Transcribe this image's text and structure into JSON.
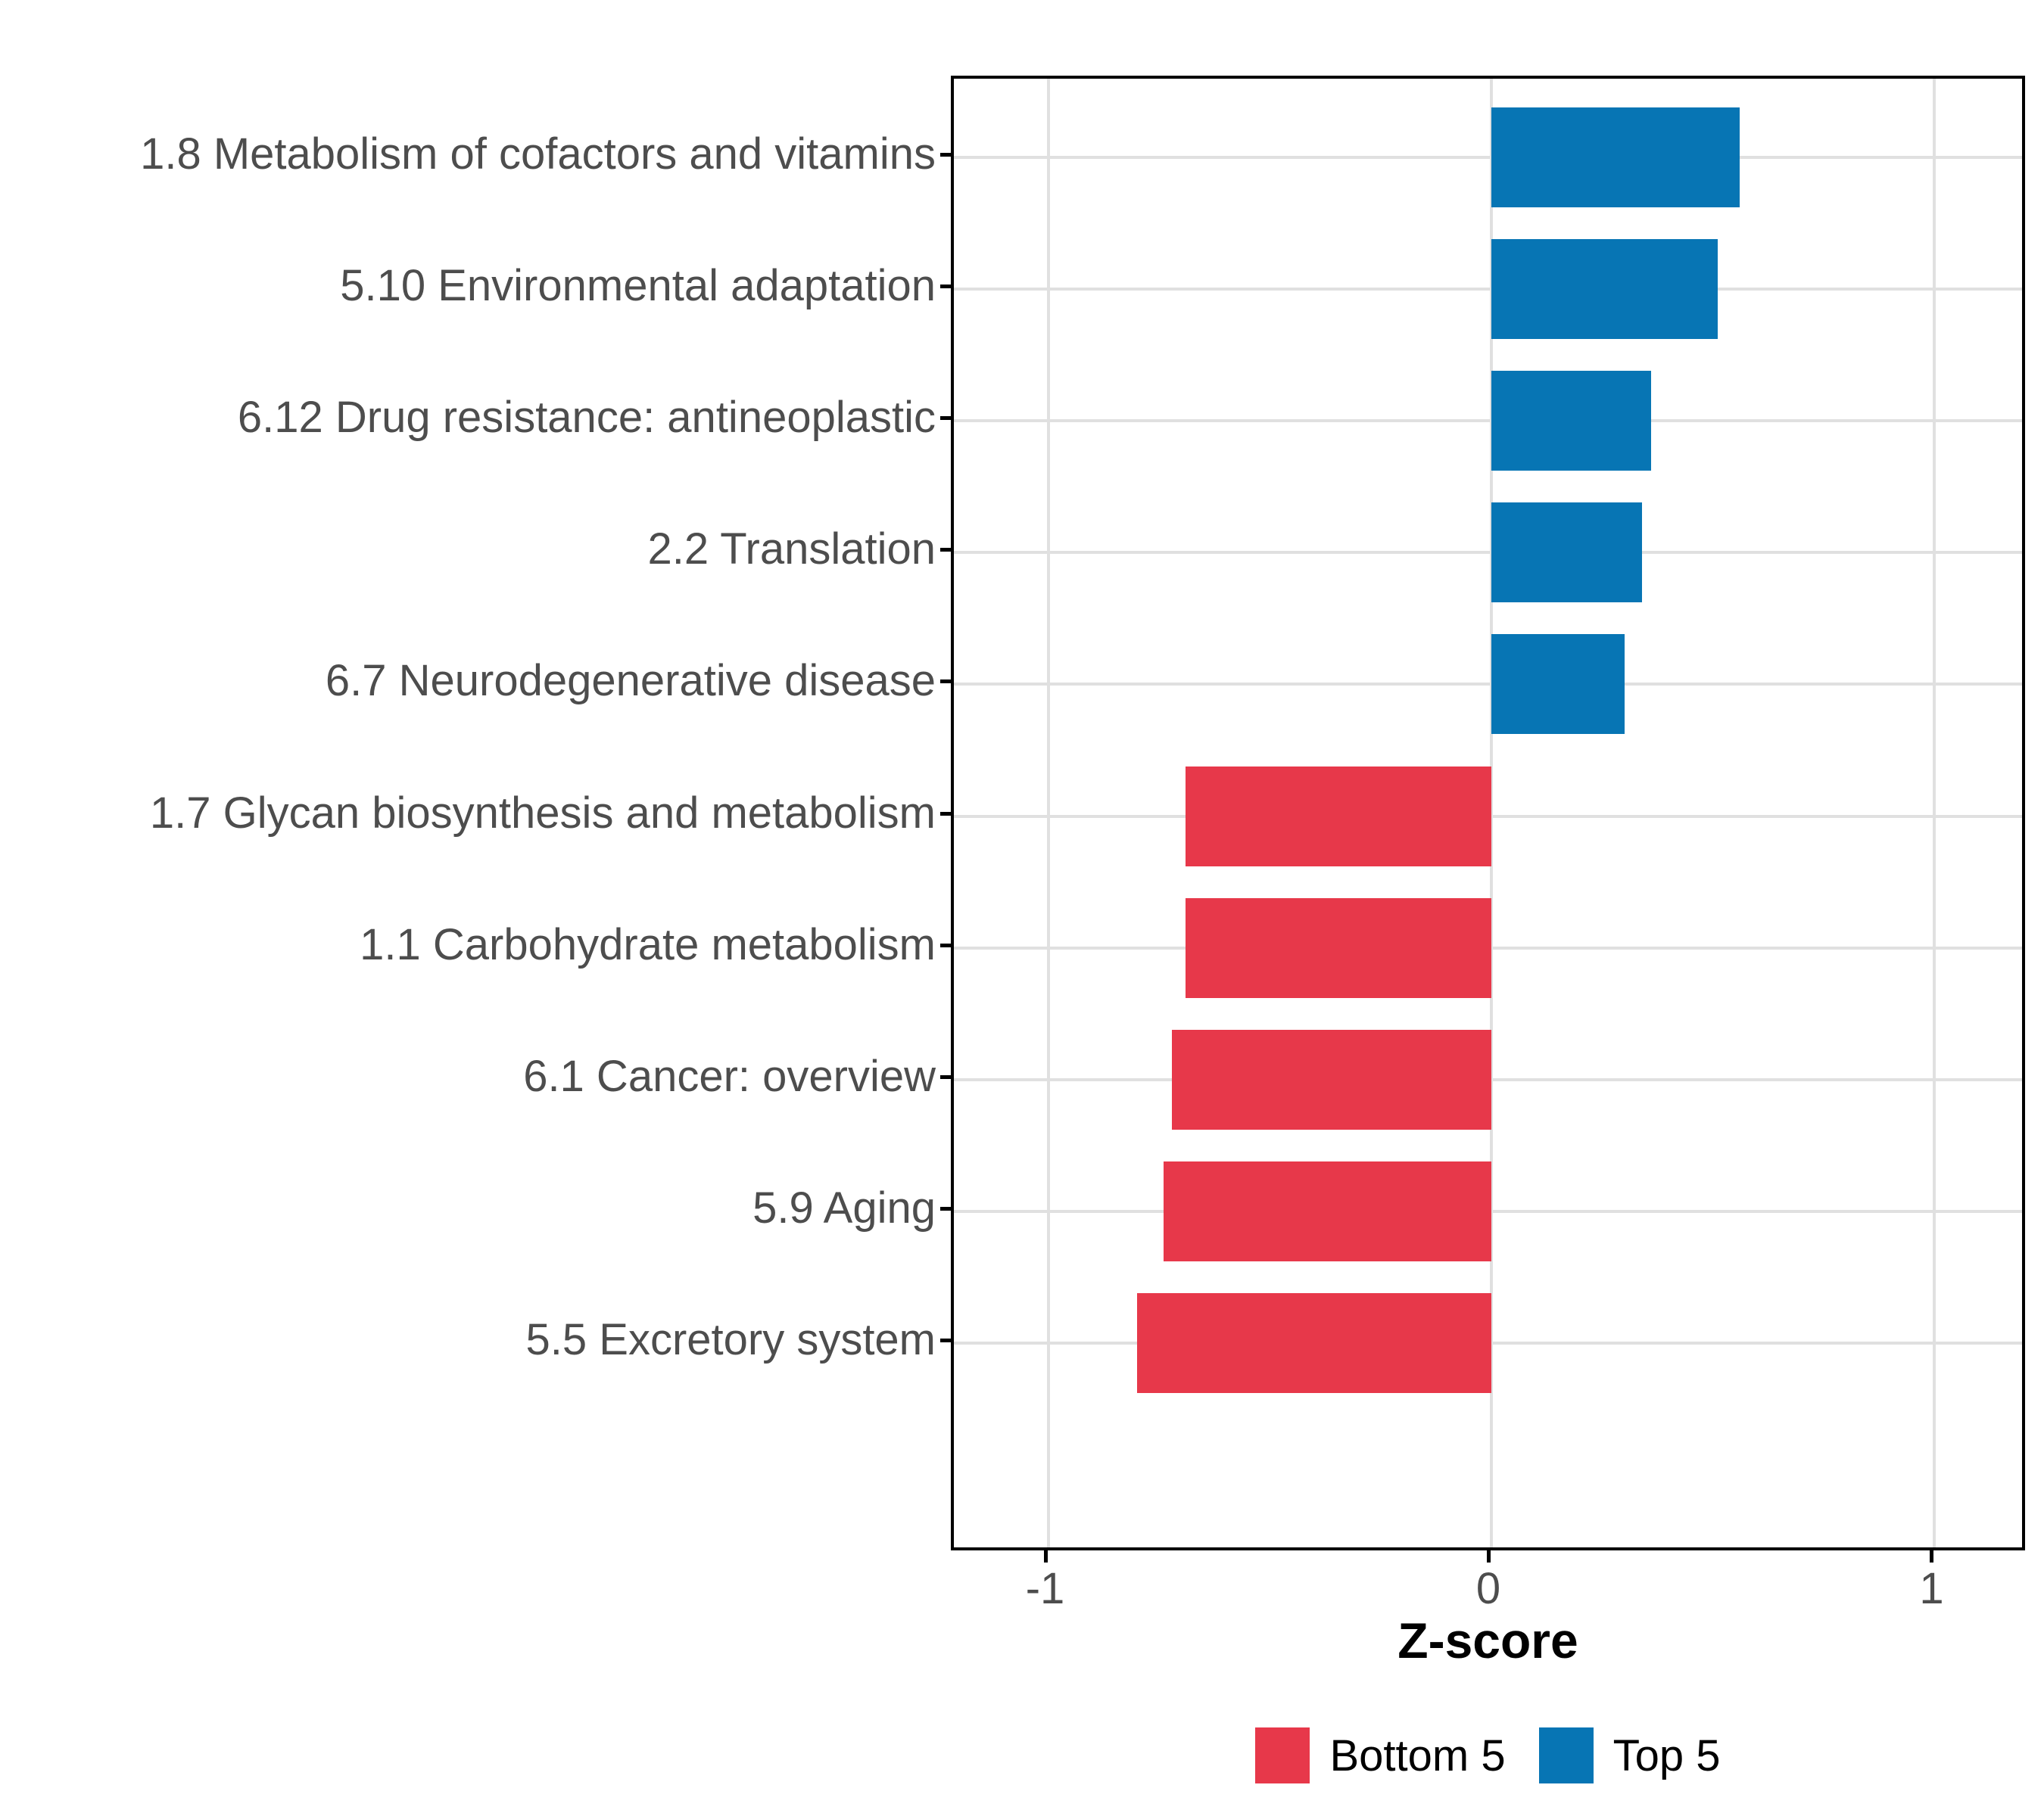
{
  "chart_data": {
    "type": "bar",
    "orientation": "horizontal",
    "title": "",
    "xlabel": "Z-score",
    "ylabel": "",
    "x_axis": {
      "label": "Z-score",
      "tick_labels": [
        "-1",
        "0",
        "1"
      ],
      "tick_values": [
        -1,
        0,
        1
      ],
      "limits": [
        -1.2127,
        1.211
      ]
    },
    "grid": {
      "major": true,
      "minor": false,
      "color": "#E0E0E0"
    },
    "categories": [
      "1.8 Metabolism of cofactors and vitamins",
      "5.10 Environmental adaptation",
      "6.12 Drug resistance: antineoplastic",
      "2.2 Translation",
      "6.7 Neurodegenerative disease",
      "1.7 Glycan biosynthesis and metabolism",
      "1.1 Carbohydrate metabolism",
      "6.1 Cancer: overview",
      "5.9 Aging",
      "5.5 Excretory system"
    ],
    "values": [
      0.56,
      0.51,
      0.36,
      0.34,
      0.3,
      -0.69,
      -0.69,
      -0.72,
      -0.74,
      -0.8
    ],
    "rows": [
      {
        "label": "1.8 Metabolism of cofactors and vitamins",
        "value": 0.56,
        "group": "Top 5"
      },
      {
        "label": "5.10 Environmental adaptation",
        "value": 0.51,
        "group": "Top 5"
      },
      {
        "label": "6.12 Drug resistance: antineoplastic",
        "value": 0.36,
        "group": "Top 5"
      },
      {
        "label": "2.2 Translation",
        "value": 0.34,
        "group": "Top 5"
      },
      {
        "label": "6.7 Neurodegenerative disease",
        "value": 0.3,
        "group": "Top 5"
      },
      {
        "label": "1.7 Glycan biosynthesis and metabolism",
        "value": -0.69,
        "group": "Bottom 5"
      },
      {
        "label": "1.1 Carbohydrate metabolism",
        "value": -0.69,
        "group": "Bottom 5"
      },
      {
        "label": "6.1 Cancer: overview",
        "value": -0.72,
        "group": "Bottom 5"
      },
      {
        "label": "5.9 Aging",
        "value": -0.74,
        "group": "Bottom 5"
      },
      {
        "label": "5.5 Excretory system",
        "value": -0.8,
        "group": "Bottom 5"
      }
    ],
    "group_colors": {
      "Top 5": "#0775B4",
      "Bottom 5": "#E7384A"
    },
    "legend": {
      "position": "bottom",
      "items": [
        {
          "label": "Bottom 5",
          "color": "#E7384A"
        },
        {
          "label": "Top 5",
          "color": "#0775B4"
        }
      ]
    }
  },
  "style": {
    "axis_text_color": "#4D4D4D",
    "panel_border_color": "#000000",
    "background": "#FFFFFF"
  }
}
